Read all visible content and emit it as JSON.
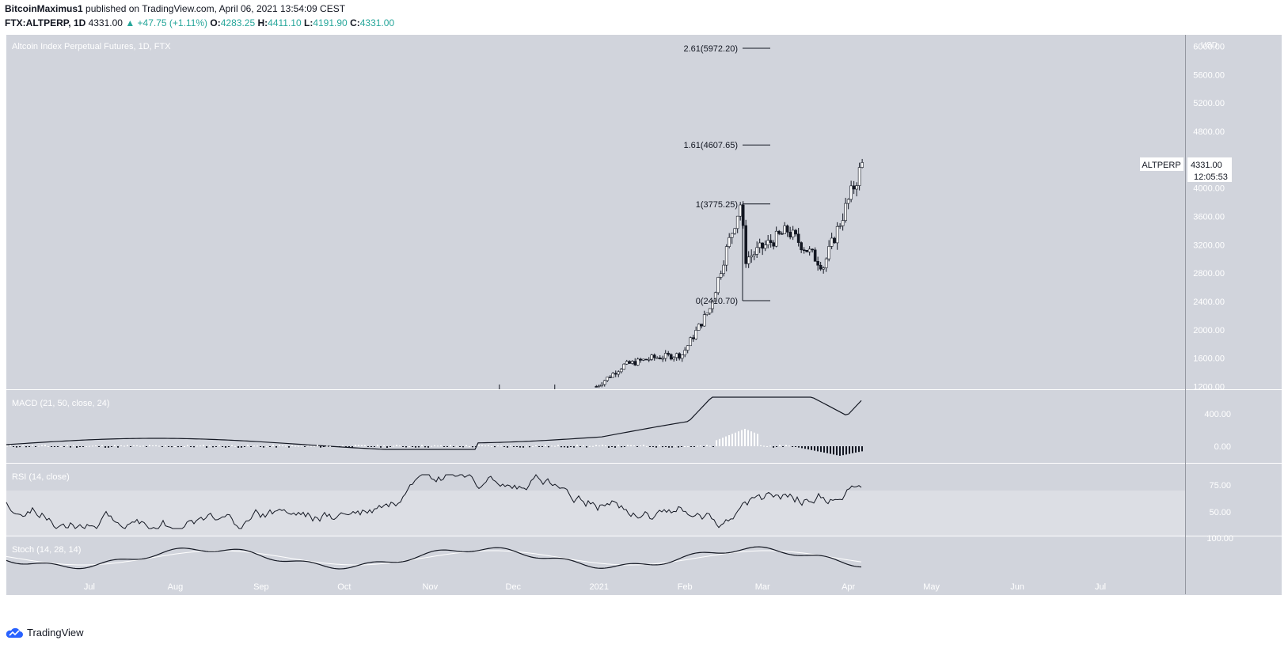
{
  "header": {
    "author": "BitcoinMaximus1",
    "published": "published on TradingView.com, April 06, 2021 13:54:09 CEST",
    "symbol": "FTX:ALTPERP, 1D",
    "last": "4331.00",
    "change": "+47.75 (+1.11%)",
    "o_label": "O:",
    "o": "4283.25",
    "h_label": "H:",
    "h": "4411.10",
    "l_label": "L:",
    "l": "4191.90",
    "c_label": "C:",
    "c": "4331.00"
  },
  "footer": {
    "brand": "TradingView"
  },
  "colors": {
    "panel_bg": "#d1d4dc",
    "rsi_band": "#dcdee4",
    "candle": "#131722",
    "signal": "#ffffff",
    "accent_green": "#26a69a",
    "brand_blue": "#2962ff"
  },
  "chart_data": {
    "type": "candlestick",
    "title": "Altcoin Index Perpetual Futures, 1D, FTX",
    "currency": "USD",
    "symbol_tag": "ALTPERP",
    "last_price": "4331.00",
    "countdown": "12:05:53",
    "x_ticks": [
      "Jul",
      "Aug",
      "Sep",
      "Oct",
      "Nov",
      "Dec",
      "2021",
      "Feb",
      "Mar",
      "Apr",
      "May",
      "Jun",
      "Jul"
    ],
    "y_ticks": [
      "6000.00",
      "5600.00",
      "5200.00",
      "4800.00",
      "4000.00",
      "3600.00",
      "3200.00",
      "2800.00",
      "2400.00",
      "2000.00",
      "1600.00",
      "1200.00"
    ],
    "ylim": [
      1160,
      6050
    ],
    "fib_levels": [
      {
        "label": "2.61(5972.20)",
        "value": 5972.2
      },
      {
        "label": "1.61(4607.65)",
        "value": 4607.65
      },
      {
        "label": "1(3775.25)",
        "value": 3775.25
      },
      {
        "label": "0(2410.70)",
        "value": 2410.7
      }
    ],
    "candles_approx": [
      {
        "date": "2020-12-31",
        "close": 1200
      },
      {
        "date": "2021-01-10",
        "close": 1500
      },
      {
        "date": "2021-01-20",
        "close": 1600
      },
      {
        "date": "2021-01-31",
        "close": 1650
      },
      {
        "date": "2021-02-10",
        "close": 2300
      },
      {
        "date": "2021-02-15",
        "close": 3000
      },
      {
        "date": "2021-02-21",
        "close": 3775
      },
      {
        "date": "2021-02-23",
        "close": 3000
      },
      {
        "date": "2021-03-10",
        "close": 3400
      },
      {
        "date": "2021-03-23",
        "close": 2900
      },
      {
        "date": "2021-04-06",
        "close": 4331
      }
    ],
    "indicators": [
      {
        "name": "MACD (21, 50, close, 24)",
        "ticks": [
          "400.00",
          "0.00"
        ]
      },
      {
        "name": "RSI (14, close)",
        "ticks": [
          "75.00",
          "50.00"
        ]
      },
      {
        "name": "Stoch (14, 28, 14)",
        "ticks": [
          "100.00"
        ]
      }
    ]
  }
}
